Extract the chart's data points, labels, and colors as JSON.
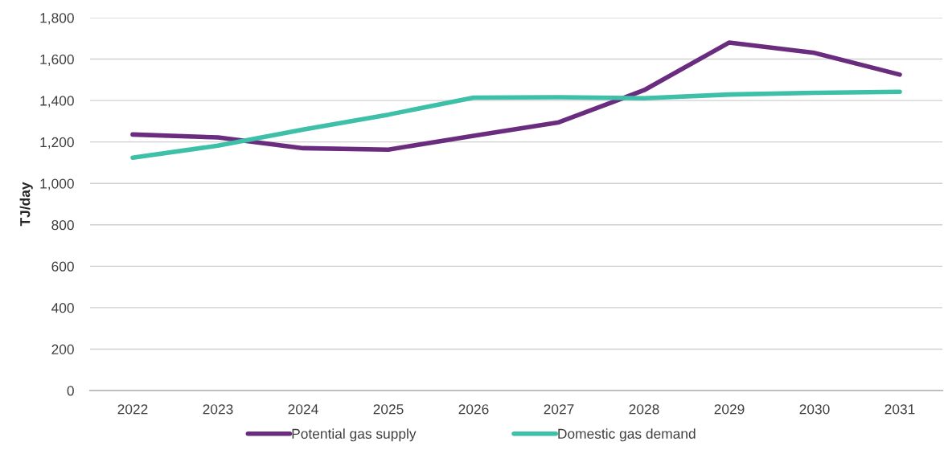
{
  "chart_data": {
    "type": "line",
    "ylabel": "TJ/day",
    "categories": [
      "2022",
      "2023",
      "2024",
      "2025",
      "2026",
      "2027",
      "2028",
      "2029",
      "2030",
      "2031"
    ],
    "series": [
      {
        "name": "Potential gas supply",
        "color": "#6a2c7e",
        "values": [
          1236,
          1222,
          1170,
          1163,
          1230,
          1295,
          1450,
          1680,
          1630,
          1525
        ]
      },
      {
        "name": "Domestic gas demand",
        "color": "#3dbfa8",
        "values": [
          1124,
          1182,
          1260,
          1332,
          1414,
          1416,
          1411,
          1429,
          1437,
          1442
        ]
      }
    ],
    "ylim": [
      0,
      1800
    ],
    "yticks": [
      0,
      200,
      400,
      600,
      800,
      {
        "value": 1000,
        "label": "1,000"
      },
      {
        "value": 1200,
        "label": "1,200"
      },
      {
        "value": 1400,
        "label": "1,400"
      },
      {
        "value": 1600,
        "label": "1,600"
      },
      {
        "value": 1800,
        "label": "1,800"
      }
    ],
    "grid": "y",
    "legend": "bottom",
    "line_style": "solid"
  }
}
